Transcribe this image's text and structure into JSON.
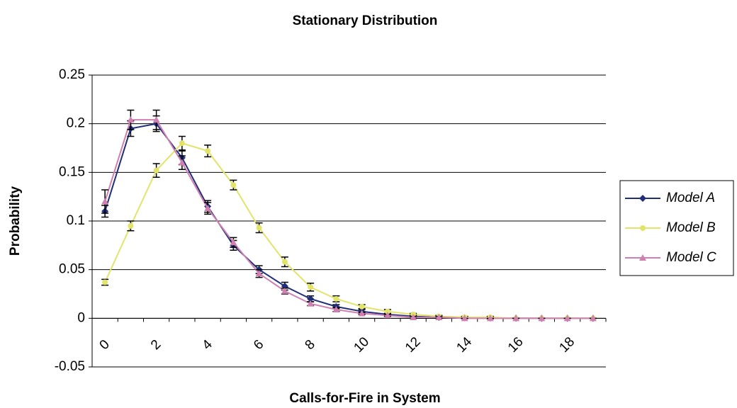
{
  "chart_data": {
    "type": "line",
    "title": "Stationary Distribution",
    "x_label": "Calls-for-Fire in System",
    "y_label": "Probability",
    "categories": [
      "0",
      null,
      "2",
      null,
      "4",
      null,
      "6",
      null,
      "8",
      null,
      "10",
      null,
      "12",
      null,
      "14",
      null,
      "16",
      null,
      "18",
      null
    ],
    "series": [
      {
        "name": "Model A",
        "color": "#1f2f7a",
        "marker": "diamond",
        "values": [
          0.11,
          0.195,
          0.2,
          0.165,
          0.115,
          0.075,
          0.05,
          0.033,
          0.02,
          0.012,
          0.007,
          0.004,
          0.002,
          0.001,
          0.0005,
          0.0003,
          0.0001,
          0,
          0,
          0
        ],
        "errors": [
          0.006,
          0.008,
          0.008,
          0.007,
          0.006,
          0.005,
          0.004,
          0.004,
          0.003,
          0.002,
          0.002,
          0.001,
          0.001,
          0.001,
          0.001,
          0.001,
          0,
          0,
          0,
          0
        ]
      },
      {
        "name": "Model B",
        "color": "#e2e46a",
        "marker": "circle",
        "values": [
          0.037,
          0.095,
          0.152,
          0.18,
          0.172,
          0.137,
          0.093,
          0.058,
          0.032,
          0.02,
          0.012,
          0.007,
          0.004,
          0.002,
          0.001,
          0.001,
          0,
          0,
          0,
          0
        ],
        "errors": [
          0.003,
          0.005,
          0.007,
          0.007,
          0.006,
          0.005,
          0.005,
          0.005,
          0.004,
          0.003,
          0.002,
          0.002,
          0.001,
          0.001,
          0.001,
          0.001,
          0,
          0,
          0,
          0
        ]
      },
      {
        "name": "Model C",
        "color": "#d080b0",
        "marker": "triangle",
        "values": [
          0.12,
          0.204,
          0.204,
          0.16,
          0.113,
          0.078,
          0.046,
          0.028,
          0.015,
          0.009,
          0.005,
          0.003,
          0.001,
          0.001,
          0,
          0,
          0,
          0,
          0,
          0
        ],
        "errors": [
          0.012,
          0.01,
          0.01,
          0.007,
          0.006,
          0.005,
          0.004,
          0.003,
          0.002,
          0.002,
          0.001,
          0.001,
          0.001,
          0.001,
          0,
          0,
          0,
          0,
          0,
          0
        ]
      }
    ],
    "ylim": [
      -0.05,
      0.25
    ],
    "yticks": [
      0.25,
      0.2,
      0.15,
      0.1,
      0.05,
      0,
      -0.05
    ],
    "grid": true,
    "legend": "right"
  }
}
